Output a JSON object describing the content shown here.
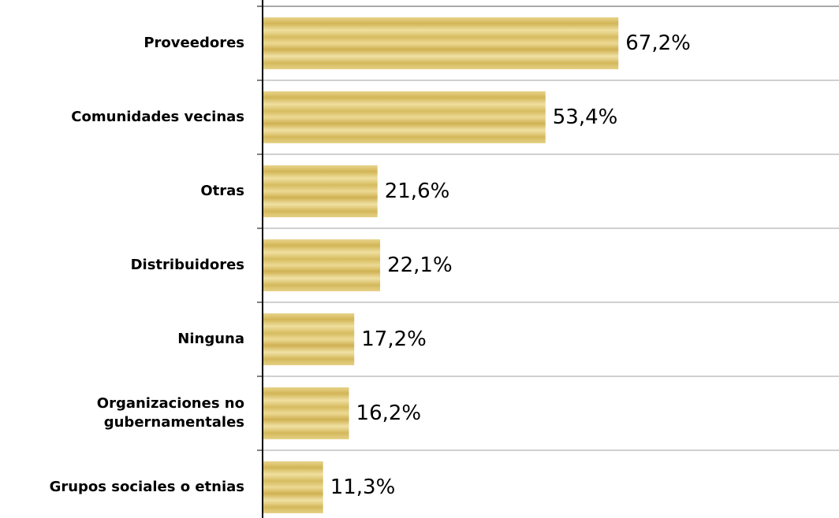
{
  "chart_data": {
    "type": "barh",
    "categories": [
      "Proveedores",
      "Comunidades vecinas",
      "Otras",
      "Distribuidores",
      "Ninguna",
      "Organizaciones no\ngubernamentales",
      "Grupos sociales o etnias"
    ],
    "values": [
      67.2,
      53.4,
      21.6,
      22.1,
      17.2,
      16.2,
      11.3
    ],
    "value_labels": [
      "67,2%",
      "53,4%",
      "21,6%",
      "22,1%",
      "17,2%",
      "16,2%",
      "11,3%"
    ],
    "color": "#d9bf62",
    "grid": true
  }
}
